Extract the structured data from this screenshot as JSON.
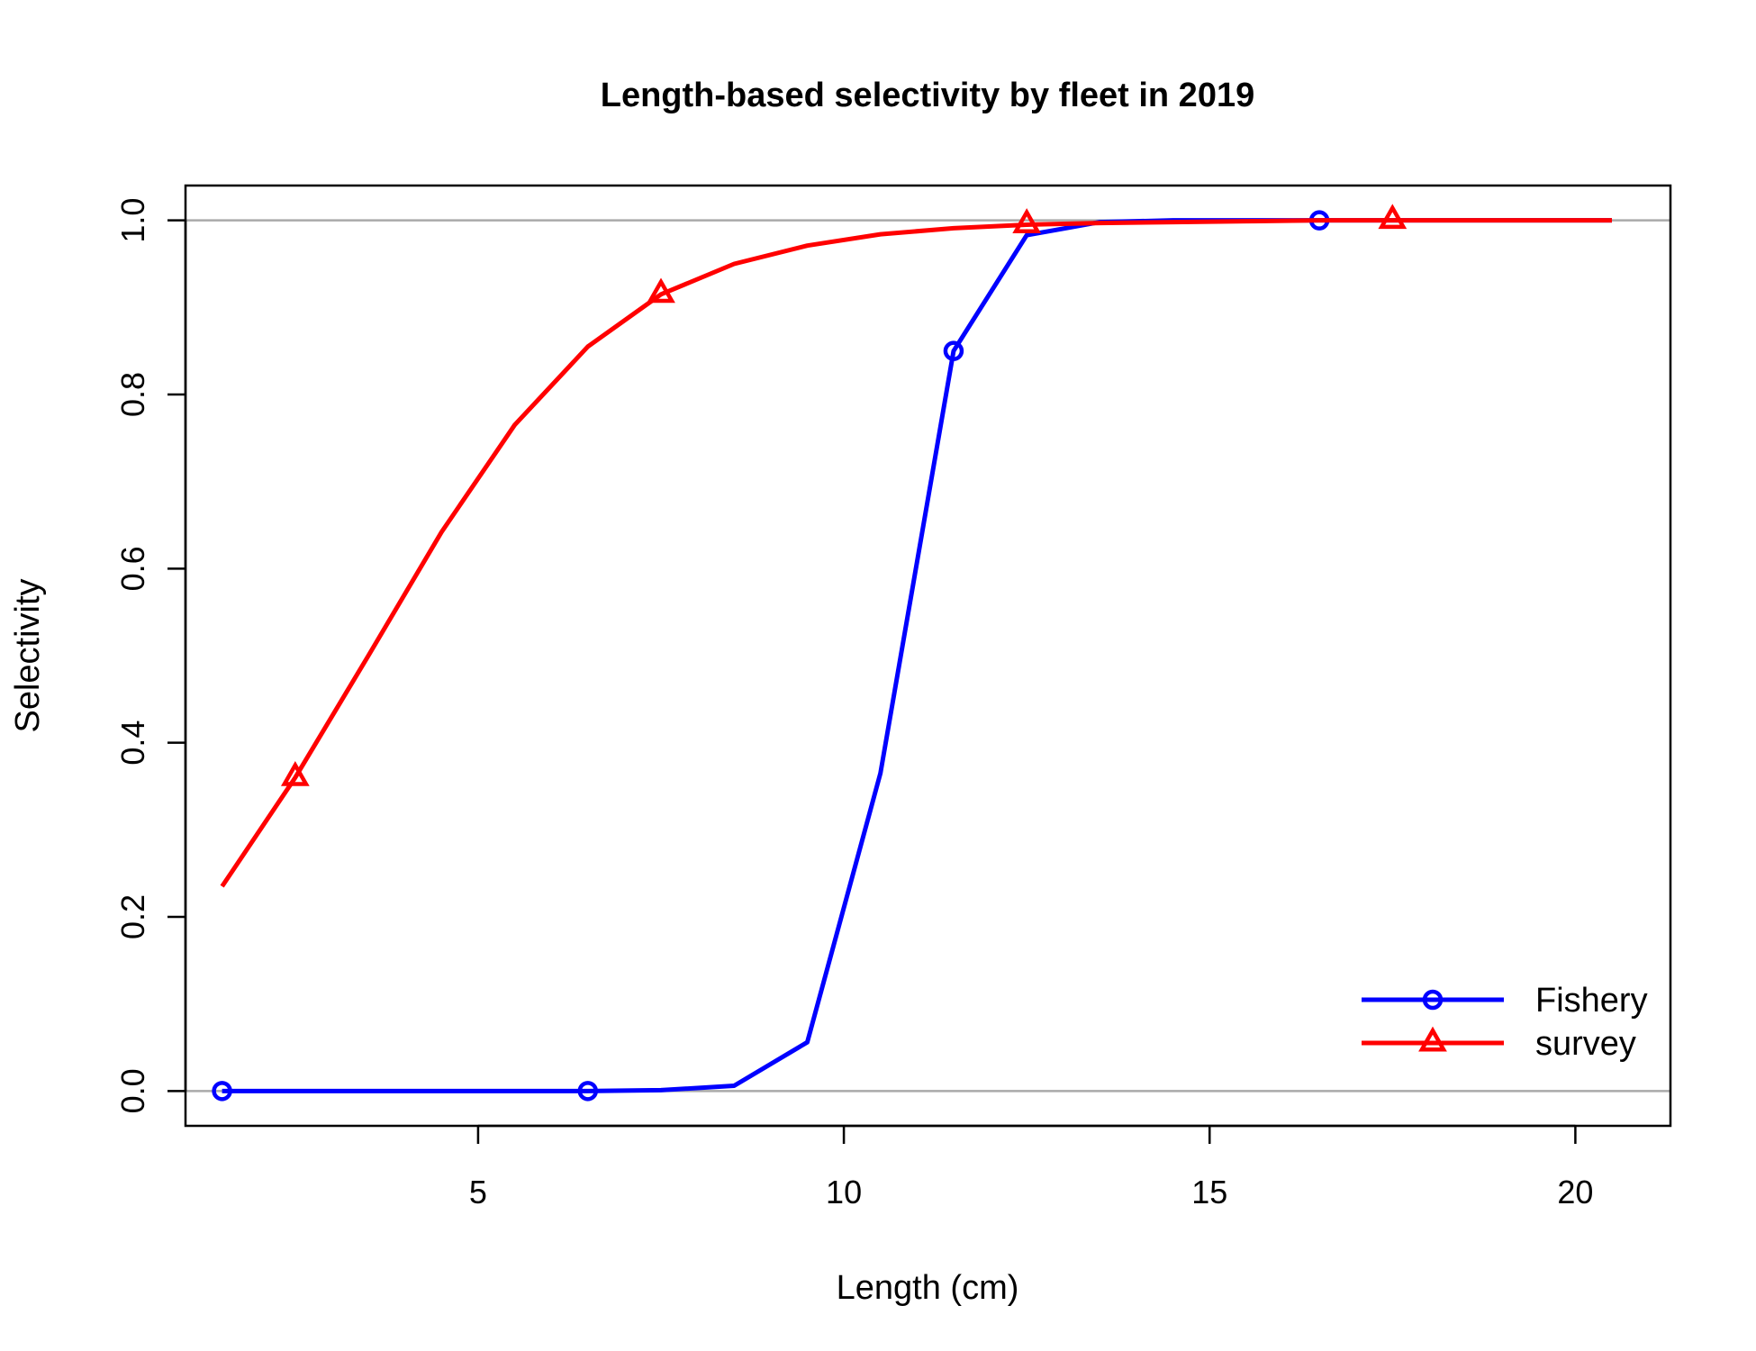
{
  "chart_data": {
    "type": "line",
    "title": "Length-based selectivity by fleet in 2019",
    "xlabel": "Length (cm)",
    "ylabel": "Selectivity",
    "xlim": [
      1.0,
      21.3
    ],
    "ylim": [
      -0.04,
      1.04
    ],
    "x_ticks": [
      5,
      10,
      15,
      20
    ],
    "y_ticks": [
      0.0,
      0.2,
      0.4,
      0.6,
      0.8,
      1.0
    ],
    "x_tick_labels": [
      "5",
      "10",
      "15",
      "20"
    ],
    "y_tick_labels": [
      "0.0",
      "0.2",
      "0.4",
      "0.6",
      "0.8",
      "1.0"
    ],
    "reference_lines": [
      0.0,
      1.0
    ],
    "reference_line_color": "#aaaaaa",
    "grid": false,
    "legend_position": "bottom-right",
    "series": [
      {
        "name": "Fishery",
        "color": "#0000ff",
        "marker": "circle",
        "x": [
          1.5,
          2.5,
          3.5,
          4.5,
          5.5,
          6.5,
          7.5,
          8.5,
          9.5,
          10.5,
          11.5,
          12.5,
          13.5,
          14.5,
          15.5,
          16.5,
          17.5,
          18.5,
          19.5,
          20.5
        ],
        "y": [
          0.0,
          0.0,
          0.0,
          0.0,
          0.0,
          0.0,
          0.001,
          0.006,
          0.056,
          0.365,
          0.85,
          0.983,
          0.998,
          1.0,
          1.0,
          1.0,
          1.0,
          1.0,
          1.0,
          1.0
        ],
        "marker_x": [
          1.5,
          6.5,
          11.5,
          16.5
        ],
        "marker_y": [
          0.0,
          0.0,
          0.85,
          1.0
        ]
      },
      {
        "name": "survey",
        "color": "#ff0000",
        "marker": "triangle",
        "x": [
          1.5,
          2.5,
          3.5,
          4.5,
          5.5,
          6.5,
          7.5,
          8.5,
          9.5,
          10.5,
          11.5,
          12.5,
          13.5,
          14.5,
          15.5,
          16.5,
          17.5,
          18.5,
          19.5,
          20.5
        ],
        "y": [
          0.235,
          0.36,
          0.5,
          0.642,
          0.765,
          0.855,
          0.915,
          0.95,
          0.971,
          0.984,
          0.991,
          0.995,
          0.997,
          0.998,
          0.999,
          1.0,
          1.0,
          1.0,
          1.0,
          1.0
        ],
        "marker_x": [
          2.5,
          7.5,
          12.5,
          17.5
        ],
        "marker_y": [
          0.36,
          0.915,
          0.995,
          1.0
        ]
      }
    ]
  }
}
